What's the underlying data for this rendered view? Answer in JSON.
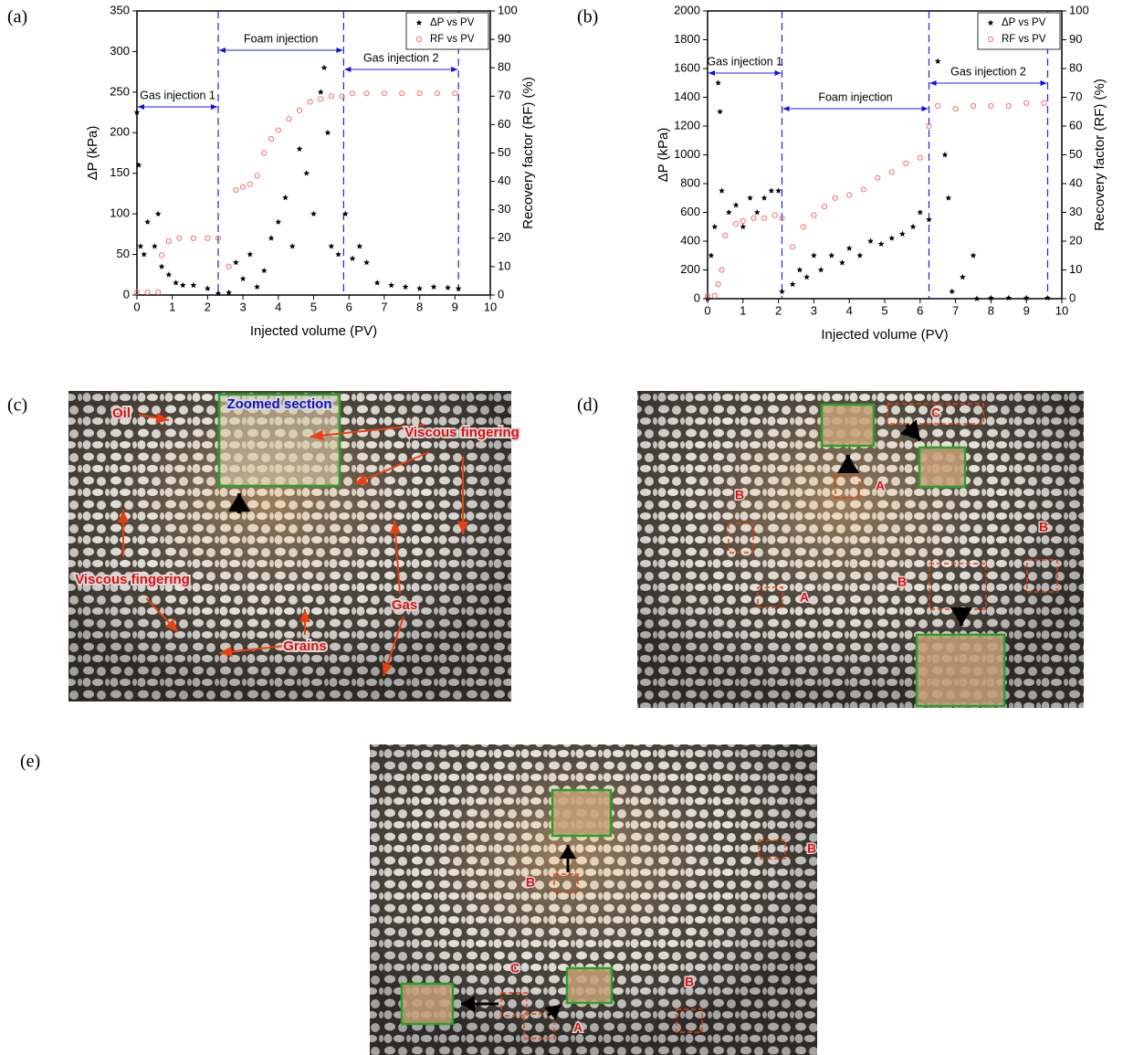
{
  "chart_data": [
    {
      "type": "scatter",
      "panel_label": "(a)",
      "xlabel": "Injected volume (PV)",
      "ylabel": "ΔP (kPa)",
      "y2label": "Recovery factor (RF) (%)",
      "xlim": [
        0,
        10
      ],
      "xticks": [
        0,
        1,
        2,
        3,
        4,
        5,
        6,
        7,
        8,
        9,
        10
      ],
      "ylim": [
        0,
        350
      ],
      "yticks": [
        0,
        50,
        100,
        150,
        200,
        250,
        300,
        350
      ],
      "y2lim": [
        0,
        100
      ],
      "y2ticks": [
        0,
        10,
        20,
        30,
        40,
        50,
        60,
        70,
        80,
        90,
        100
      ],
      "legend": "upper right",
      "phase_lines": [
        2.3,
        5.85,
        9.1
      ],
      "phases": [
        "Gas injection 1",
        "Foam injection",
        "Gas injection 2"
      ],
      "series": [
        {
          "name": "ΔP vs PV",
          "color": "#000000",
          "marker": "star",
          "x": [
            0,
            0.05,
            0.1,
            0.2,
            0.3,
            0.5,
            0.6,
            0.7,
            0.9,
            1.1,
            1.3,
            1.6,
            2.0,
            2.3,
            2.6,
            2.8,
            3.0,
            3.2,
            3.4,
            3.6,
            3.8,
            4.0,
            4.2,
            4.4,
            4.6,
            4.8,
            5.0,
            5.2,
            5.3,
            5.4,
            5.5,
            5.7,
            5.9,
            6.1,
            6.3,
            6.5,
            6.8,
            7.2,
            7.6,
            8.0,
            8.4,
            8.8,
            9.1
          ],
          "values": [
            225,
            160,
            60,
            50,
            90,
            60,
            100,
            35,
            25,
            15,
            12,
            12,
            8,
            2,
            3,
            40,
            20,
            50,
            10,
            30,
            70,
            90,
            120,
            60,
            180,
            150,
            100,
            250,
            280,
            200,
            60,
            50,
            100,
            45,
            60,
            40,
            15,
            12,
            10,
            8,
            10,
            9,
            8
          ]
        },
        {
          "name": "RF vs PV",
          "color": "#f07070",
          "marker": "open",
          "axis": "y2",
          "x": [
            0,
            0.3,
            0.6,
            0.7,
            0.9,
            1.2,
            1.6,
            2.0,
            2.3,
            2.6,
            2.8,
            3.0,
            3.2,
            3.4,
            3.6,
            3.8,
            4.0,
            4.3,
            4.6,
            4.9,
            5.2,
            5.5,
            5.8,
            6.1,
            6.5,
            7.0,
            7.5,
            8.0,
            8.5,
            9.0
          ],
          "values": [
            1,
            1,
            1,
            14,
            19,
            20,
            20,
            20,
            20,
            10,
            37,
            38,
            39,
            42,
            50,
            55,
            58,
            62,
            65,
            68,
            69,
            70,
            70,
            71,
            71,
            71,
            71,
            71,
            71,
            71
          ]
        }
      ]
    },
    {
      "type": "scatter",
      "panel_label": "(b)",
      "xlabel": "Injected volume (PV)",
      "ylabel": "ΔP (kPa)",
      "y2label": "Recovery factor (RF) (%)",
      "xlim": [
        0,
        10
      ],
      "xticks": [
        0,
        1,
        2,
        3,
        4,
        5,
        6,
        7,
        8,
        9,
        10
      ],
      "ylim": [
        0,
        2000
      ],
      "yticks": [
        0,
        200,
        400,
        600,
        800,
        1000,
        1200,
        1400,
        1600,
        1800,
        2000
      ],
      "y2lim": [
        0,
        100
      ],
      "y2ticks": [
        0,
        10,
        20,
        30,
        40,
        50,
        60,
        70,
        80,
        90,
        100
      ],
      "legend": "upper right",
      "phase_lines": [
        2.1,
        6.25,
        9.6
      ],
      "phases": [
        "Gas injection 1",
        "Foam injection",
        "Gas injection 2"
      ],
      "series": [
        {
          "name": "ΔP vs PV",
          "color": "#000000",
          "marker": "star",
          "x": [
            0,
            0.1,
            0.2,
            0.3,
            0.35,
            0.4,
            0.6,
            0.8,
            1.0,
            1.2,
            1.4,
            1.6,
            1.8,
            2.0,
            2.1,
            2.4,
            2.6,
            2.8,
            3.0,
            3.2,
            3.5,
            3.8,
            4.0,
            4.3,
            4.6,
            4.9,
            5.2,
            5.5,
            5.8,
            6.0,
            6.25,
            6.5,
            6.7,
            6.8,
            6.9,
            7.2,
            7.5,
            7.6,
            8.0,
            8.5,
            9.0,
            9.6
          ],
          "values": [
            0,
            300,
            500,
            1500,
            1300,
            750,
            600,
            650,
            500,
            700,
            600,
            700,
            750,
            750,
            50,
            100,
            200,
            150,
            300,
            200,
            300,
            250,
            350,
            300,
            400,
            380,
            420,
            450,
            500,
            600,
            550,
            1650,
            1000,
            700,
            50,
            150,
            300,
            0,
            5,
            5,
            5,
            5
          ]
        },
        {
          "name": "RF vs PV",
          "color": "#f07070",
          "marker": "open",
          "axis": "y2",
          "x": [
            0,
            0.2,
            0.3,
            0.4,
            0.5,
            0.8,
            1.0,
            1.3,
            1.6,
            1.9,
            2.1,
            2.4,
            2.7,
            3.0,
            3.3,
            3.6,
            4.0,
            4.4,
            4.8,
            5.2,
            5.6,
            6.0,
            6.25,
            6.5,
            7.0,
            7.5,
            8.0,
            8.5,
            9.0,
            9.5
          ],
          "values": [
            1,
            1,
            5,
            10,
            22,
            26,
            27,
            28,
            28,
            29,
            28,
            18,
            25,
            29,
            32,
            35,
            36,
            38,
            42,
            44,
            47,
            49,
            60,
            67,
            66,
            67,
            67,
            67,
            68,
            68
          ]
        }
      ]
    }
  ],
  "images": [
    {
      "label": "(c)",
      "annotations": [
        "Oil",
        "Zoomed section",
        "Viscous fingering",
        "Viscous fingering",
        "Grains",
        "Gas"
      ]
    },
    {
      "label": "(d)",
      "annotations": [
        "C",
        "A",
        "B",
        "B",
        "B",
        "A"
      ]
    },
    {
      "label": "(e)",
      "annotations": [
        "B",
        "B",
        "C",
        "B",
        "A"
      ]
    }
  ]
}
